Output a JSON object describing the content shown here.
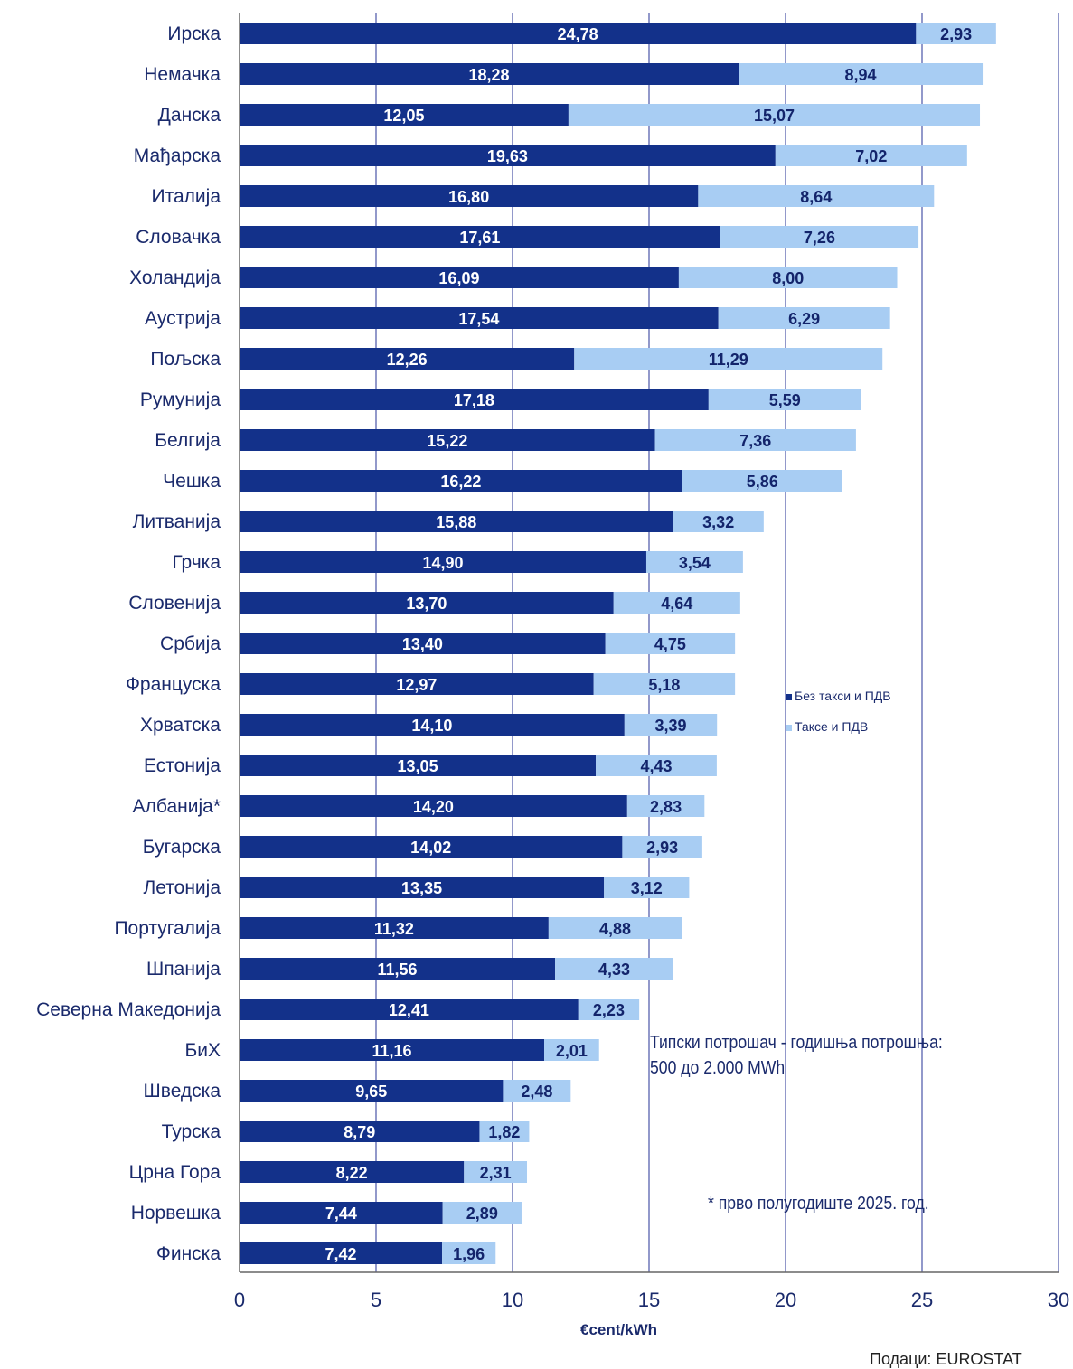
{
  "chart_data": {
    "type": "bar",
    "orientation": "horizontal",
    "stacked": true,
    "categories": [
      "Ирска",
      "Немачка",
      "Данска",
      "Мађарска",
      "Италија",
      "Словачка",
      "Холандија",
      "Аустрија",
      "Пољска",
      "Румунија",
      "Белгија",
      "Чешка",
      "Литванија",
      "Грчка",
      "Словенија",
      "Србија",
      "Француска",
      "Хрватска",
      "Естонија",
      "Албанија*",
      "Бугарска",
      "Летонија",
      "Португалија",
      "Шпанија",
      "Северна Македонија",
      "БиХ",
      "Шведска",
      "Турска",
      "Црна Гора",
      "Норвешка",
      "Финска"
    ],
    "series": [
      {
        "name": "Без такси и ПДВ",
        "color": "#13318a",
        "values": [
          24.78,
          18.28,
          12.05,
          19.63,
          16.8,
          17.61,
          16.09,
          17.54,
          12.26,
          17.18,
          15.22,
          16.22,
          15.88,
          14.9,
          13.7,
          13.4,
          12.97,
          14.1,
          13.05,
          14.2,
          14.02,
          13.35,
          11.32,
          11.56,
          12.41,
          11.16,
          9.65,
          8.79,
          8.22,
          7.44,
          7.42
        ],
        "labels": [
          "24,78",
          "18,28",
          "12,05",
          "19,63",
          "16,80",
          "17,61",
          "16,09",
          "17,54",
          "12,26",
          "17,18",
          "15,22",
          "16,22",
          "15,88",
          "14,90",
          "13,70",
          "13,40",
          "12,97",
          "14,10",
          "13,05",
          "14,20",
          "14,02",
          "13,35",
          "11,32",
          "11,56",
          "12,41",
          "11,16",
          "9,65",
          "8,79",
          "8,22",
          "7,44",
          "7,42"
        ]
      },
      {
        "name": "Таксе и ПДВ",
        "color": "#a8cdf3",
        "values": [
          2.93,
          8.94,
          15.07,
          7.02,
          8.64,
          7.26,
          8.0,
          6.29,
          11.29,
          5.59,
          7.36,
          5.86,
          3.32,
          3.54,
          4.64,
          4.75,
          5.18,
          3.39,
          4.43,
          2.83,
          2.93,
          3.12,
          4.88,
          4.33,
          2.23,
          2.01,
          2.48,
          1.82,
          2.31,
          2.89,
          1.96
        ],
        "labels": [
          "2,93",
          "8,94",
          "15,07",
          "7,02",
          "8,64",
          "7,26",
          "8,00",
          "6,29",
          "11,29",
          "5,59",
          "7,36",
          "5,86",
          "3,32",
          "3,54",
          "4,64",
          "4,75",
          "5,18",
          "3,39",
          "4,43",
          "2,83",
          "2,93",
          "3,12",
          "4,88",
          "4,33",
          "2,23",
          "2,01",
          "2,48",
          "1,82",
          "2,31",
          "2,89",
          "1,96"
        ]
      }
    ],
    "xlim": [
      0,
      30
    ],
    "xticks": [
      0,
      5,
      10,
      15,
      20,
      25,
      30
    ],
    "xlabel": "€cent/kWh",
    "grid": "vertical",
    "legend_position": "right",
    "legend": [
      "Без такси и ПДВ",
      "Таксе и ПДВ"
    ],
    "annotations": [
      "Типски потрошач - годишња потрошња:",
      "500 до 2.000 MWh",
      "* прво полугодиште 2025. год."
    ]
  },
  "source": "Подаци: EUROSTAT"
}
